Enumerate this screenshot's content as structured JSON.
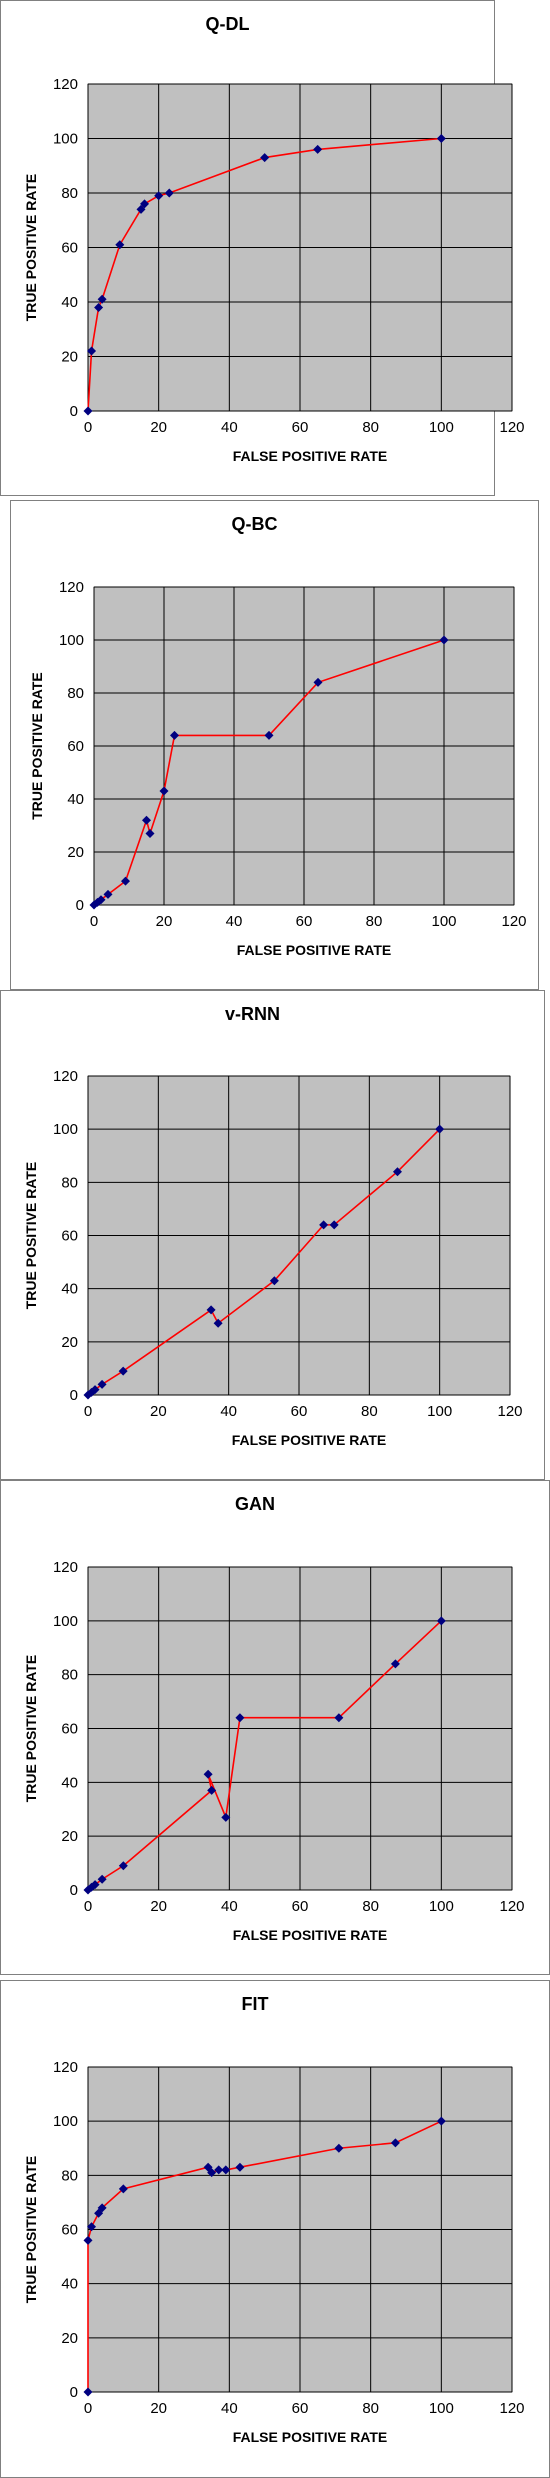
{
  "chart_data": [
    {
      "type": "line",
      "title": "Q-DL",
      "xlabel": "FALSE POSITIVE RATE",
      "ylabel": "TRUE POSITIVE RATE",
      "xlim": [
        0,
        120
      ],
      "ylim": [
        0,
        120
      ],
      "xticks": [
        0,
        20,
        40,
        60,
        80,
        100,
        120
      ],
      "yticks": [
        0,
        20,
        40,
        60,
        80,
        100,
        120
      ],
      "grid": true,
      "plot_background": "#c0c0c0",
      "line_color": "#ff0000",
      "marker_color": "#000080",
      "x": [
        0,
        1,
        3,
        4,
        9,
        15,
        16,
        20,
        23,
        50,
        65,
        100
      ],
      "y": [
        0,
        22,
        38,
        41,
        61,
        74,
        76,
        79,
        80,
        93,
        96,
        100
      ]
    },
    {
      "type": "line",
      "title": "Q-BC",
      "xlabel": "FALSE POSITIVE RATE",
      "ylabel": "TRUE POSITIVE RATE",
      "xlim": [
        0,
        120
      ],
      "ylim": [
        0,
        120
      ],
      "xticks": [
        0,
        20,
        40,
        60,
        80,
        100,
        120
      ],
      "yticks": [
        0,
        20,
        40,
        60,
        80,
        100,
        120
      ],
      "grid": true,
      "plot_background": "#c0c0c0",
      "line_color": "#ff0000",
      "marker_color": "#000080",
      "x": [
        0,
        1,
        2,
        4,
        9,
        15,
        16,
        20,
        23,
        50,
        64,
        100
      ],
      "y": [
        0,
        1,
        2,
        4,
        9,
        32,
        27,
        43,
        64,
        64,
        84,
        100
      ]
    },
    {
      "type": "line",
      "title": "v-RNN",
      "xlabel": "FALSE POSITIVE RATE",
      "ylabel": "TRUE POSITIVE RATE",
      "xlim": [
        0,
        120
      ],
      "ylim": [
        0,
        120
      ],
      "xticks": [
        0,
        20,
        40,
        60,
        80,
        100,
        120
      ],
      "yticks": [
        0,
        20,
        40,
        60,
        80,
        100,
        120
      ],
      "grid": true,
      "plot_background": "#c0c0c0",
      "line_color": "#ff0000",
      "marker_color": "#000080",
      "x": [
        0,
        1,
        2,
        4,
        10,
        35,
        37,
        53,
        67,
        70,
        88,
        100
      ],
      "y": [
        0,
        1,
        2,
        4,
        9,
        32,
        27,
        43,
        64,
        64,
        84,
        100
      ]
    },
    {
      "type": "line",
      "title": "GAN",
      "xlabel": "FALSE POSITIVE RATE",
      "ylabel": "TRUE POSITIVE RATE",
      "xlim": [
        0,
        120
      ],
      "ylim": [
        0,
        120
      ],
      "xticks": [
        0,
        20,
        40,
        60,
        80,
        100,
        120
      ],
      "yticks": [
        0,
        20,
        40,
        60,
        80,
        100,
        120
      ],
      "grid": true,
      "plot_background": "#c0c0c0",
      "line_color": "#ff0000",
      "marker_color": "#000080",
      "x": [
        0,
        1,
        2,
        4,
        10,
        35,
        34,
        39,
        43,
        71,
        87,
        100
      ],
      "y": [
        0,
        1,
        2,
        4,
        9,
        37,
        43,
        27,
        64,
        64,
        84,
        100
      ]
    },
    {
      "type": "line",
      "title": "FIT",
      "xlabel": "FALSE POSITIVE RATE",
      "ylabel": "TRUE POSITIVE RATE",
      "xlim": [
        0,
        120
      ],
      "ylim": [
        0,
        120
      ],
      "xticks": [
        0,
        20,
        40,
        60,
        80,
        100,
        120
      ],
      "yticks": [
        0,
        20,
        40,
        60,
        80,
        100,
        120
      ],
      "grid": true,
      "plot_background": "#c0c0c0",
      "line_color": "#ff0000",
      "marker_color": "#000080",
      "x": [
        0,
        0,
        1,
        3,
        4,
        10,
        34,
        35,
        37,
        39,
        43,
        71,
        87,
        100
      ],
      "y": [
        0,
        56,
        61,
        66,
        68,
        75,
        83,
        81,
        82,
        82,
        83,
        90,
        92,
        100
      ]
    }
  ]
}
